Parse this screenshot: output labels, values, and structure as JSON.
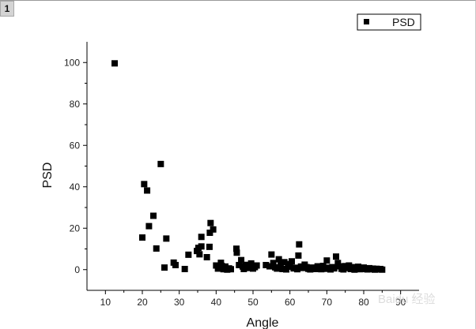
{
  "page_tab": "1",
  "watermark": "Baidu 经验",
  "chart_data": {
    "type": "scatter",
    "xlabel": "Angle",
    "ylabel": "PSD",
    "xlim": [
      5,
      95
    ],
    "ylim": [
      -10,
      110
    ],
    "x_ticks": [
      10,
      20,
      30,
      40,
      50,
      60,
      70,
      80,
      90
    ],
    "y_ticks": [
      0,
      20,
      40,
      60,
      80,
      100
    ],
    "grid": false,
    "legend_position": "top-right",
    "marker": "square",
    "color": "#000000",
    "series": [
      {
        "name": "PSD",
        "points": [
          [
            12.5,
            99.6
          ],
          [
            20,
            15.5
          ],
          [
            20.5,
            41.3
          ],
          [
            21.3,
            38.2
          ],
          [
            21.8,
            21
          ],
          [
            23,
            26
          ],
          [
            23.8,
            10.2
          ],
          [
            25,
            51
          ],
          [
            26,
            1
          ],
          [
            26.5,
            15
          ],
          [
            28.5,
            3.4
          ],
          [
            29,
            2.2
          ],
          [
            31.5,
            0.3
          ],
          [
            32.5,
            7.2
          ],
          [
            34.8,
            9
          ],
          [
            35.2,
            10.5
          ],
          [
            35.5,
            7.4
          ],
          [
            36,
            15.8
          ],
          [
            36,
            11.2
          ],
          [
            37.5,
            6
          ],
          [
            38.2,
            11
          ],
          [
            38.3,
            17.8
          ],
          [
            38.5,
            22.5
          ],
          [
            39.2,
            19.4
          ],
          [
            40,
            2
          ],
          [
            40.5,
            0.5
          ],
          [
            41.3,
            3.3
          ],
          [
            41.5,
            1.8
          ],
          [
            42,
            0.2
          ],
          [
            42.5,
            1.5
          ],
          [
            43,
            0
          ],
          [
            43.5,
            0.6
          ],
          [
            44,
            0.2
          ],
          [
            45.5,
            10.1
          ],
          [
            45.6,
            8.2
          ],
          [
            46.2,
            2.2
          ],
          [
            46.8,
            4.6
          ],
          [
            47.2,
            1.5
          ],
          [
            47.5,
            0.3
          ],
          [
            48,
            2.3
          ],
          [
            48.5,
            0.8
          ],
          [
            49,
            1.7
          ],
          [
            49.5,
            3
          ],
          [
            50,
            0.5
          ],
          [
            50.5,
            1.2
          ],
          [
            51,
            2
          ],
          [
            53.5,
            2.2
          ],
          [
            54.5,
            1.6
          ],
          [
            55,
            7.3
          ],
          [
            55.5,
            3.2
          ],
          [
            56,
            1.1
          ],
          [
            56.5,
            0.5
          ],
          [
            57,
            5
          ],
          [
            57.5,
            2.4
          ],
          [
            58,
            0.3
          ],
          [
            58.5,
            3.6
          ],
          [
            59,
            0.1
          ],
          [
            59.5,
            1.4
          ],
          [
            60,
            2.7
          ],
          [
            60.5,
            4
          ],
          [
            61,
            0.6
          ],
          [
            61.5,
            0.9
          ],
          [
            62,
            0.2
          ],
          [
            62.3,
            6.8
          ],
          [
            62.5,
            12.2
          ],
          [
            63,
            1.5
          ],
          [
            63.5,
            0.8
          ],
          [
            64,
            2.4
          ],
          [
            64.5,
            1.2
          ],
          [
            65,
            0.4
          ],
          [
            65.5,
            0.1
          ],
          [
            66,
            1
          ],
          [
            66.5,
            0.7
          ],
          [
            67,
            0.3
          ],
          [
            67.5,
            1.6
          ],
          [
            68,
            0.5
          ],
          [
            68.5,
            0.2
          ],
          [
            69,
            1.8
          ],
          [
            69.5,
            0.4
          ],
          [
            70,
            4.4
          ],
          [
            70.5,
            0.9
          ],
          [
            71,
            0.1
          ],
          [
            71.5,
            1.2
          ],
          [
            72,
            0.6
          ],
          [
            72.5,
            6.3
          ],
          [
            73,
            3.2
          ],
          [
            73.5,
            1.6
          ],
          [
            74,
            0.4
          ],
          [
            74.5,
            0.1
          ],
          [
            75,
            1.7
          ],
          [
            75.5,
            0.8
          ],
          [
            76,
            2
          ],
          [
            76.5,
            0.3
          ],
          [
            77,
            1.2
          ],
          [
            77.5,
            0
          ],
          [
            78,
            0.9
          ],
          [
            78.5,
            1.4
          ],
          [
            79,
            0.2
          ],
          [
            79.5,
            0.6
          ],
          [
            80,
            1
          ],
          [
            80.5,
            0.3
          ],
          [
            81,
            0.1
          ],
          [
            81.5,
            0.7
          ],
          [
            82,
            0.2
          ],
          [
            82.5,
            0.5
          ],
          [
            83,
            0
          ],
          [
            83.5,
            0.4
          ],
          [
            84,
            0.1
          ],
          [
            84.5,
            0.3
          ],
          [
            85,
            0
          ]
        ]
      }
    ]
  }
}
